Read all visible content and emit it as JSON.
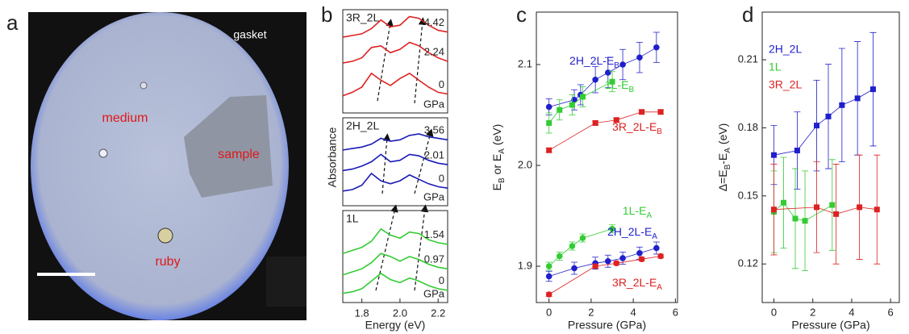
{
  "photo": {
    "panel_label": "a",
    "gasket": "gasket",
    "medium": "medium",
    "sample": "sample",
    "ruby": "ruby"
  },
  "chart_data": [
    {
      "type": "line",
      "panel_label": "b",
      "xlabel": "Energy (eV)",
      "ylabel": "Absorbance",
      "xlim": [
        1.7,
        2.25
      ],
      "xticks": [
        1.8,
        {
          "value": 2,
          "label": "2.0"
        },
        2.2
      ],
      "x": [
        1.7,
        1.75,
        1.8,
        1.85,
        1.9,
        1.95,
        2.0,
        2.05,
        2.1,
        2.15,
        2.2,
        2.25
      ],
      "panels": [
        {
          "label": "3R_2L",
          "unit": "GPa",
          "ylim": [
            0,
            3
          ],
          "color": "#dd2222",
          "series": [
            {
              "name": "4.42",
              "values": [
                2.2,
                2.25,
                2.3,
                2.45,
                2.7,
                2.5,
                2.55,
                2.8,
                2.75,
                2.55,
                2.4,
                2.35
              ]
            },
            {
              "name": "2.24",
              "values": [
                1.45,
                1.5,
                1.6,
                1.9,
                1.95,
                1.75,
                1.85,
                2.05,
                1.95,
                1.75,
                1.6,
                1.5
              ]
            },
            {
              "name": "0",
              "values": [
                0.5,
                0.6,
                0.75,
                1.15,
                0.95,
                0.8,
                1.0,
                1.15,
                0.95,
                0.75,
                0.6,
                0.55
              ]
            }
          ]
        },
        {
          "label": "2H_2L",
          "unit": "GPa",
          "ylim": [
            0,
            3
          ],
          "color": "#1a1ab8",
          "series": [
            {
              "name": "3.56",
              "values": [
                1.9,
                1.95,
                2.0,
                2.1,
                2.3,
                2.2,
                2.25,
                2.4,
                2.45,
                2.35,
                2.3,
                2.25
              ]
            },
            {
              "name": "2.01",
              "values": [
                1.2,
                1.25,
                1.35,
                1.5,
                1.75,
                1.5,
                1.55,
                1.75,
                1.7,
                1.55,
                1.45,
                1.4
              ]
            },
            {
              "name": "0",
              "values": [
                0.5,
                0.55,
                0.7,
                1.1,
                0.85,
                0.75,
                0.85,
                1.05,
                0.9,
                0.75,
                0.65,
                0.6
              ]
            }
          ]
        },
        {
          "label": "1L",
          "unit": "GPa",
          "ylim": [
            0,
            3
          ],
          "color": "#33cc33",
          "series": [
            {
              "name": "1.54",
              "values": [
                1.6,
                1.7,
                1.8,
                2.0,
                2.4,
                2.2,
                2.1,
                2.3,
                2.25,
                2.05,
                1.95,
                1.9
              ]
            },
            {
              "name": "0.97",
              "values": [
                0.9,
                1.0,
                1.1,
                1.3,
                1.6,
                1.5,
                1.35,
                1.5,
                1.4,
                1.25,
                1.15,
                1.1
              ]
            },
            {
              "name": "0",
              "values": [
                0.3,
                0.35,
                0.45,
                0.7,
                0.95,
                0.75,
                0.65,
                0.8,
                0.7,
                0.55,
                0.45,
                0.4
              ]
            }
          ]
        }
      ]
    },
    {
      "type": "scatter",
      "panel_label": "c",
      "xlabel": "Pressure (GPa)",
      "ylabel": "EB or EA (eV)",
      "xlim": [
        -0.6,
        6.1
      ],
      "xticks": [
        0,
        2,
        4,
        6
      ],
      "ylim": [
        1.864,
        2.152
      ],
      "yticks": [
        1.9,
        {
          "value": 2,
          "label": "2.0"
        },
        2.1
      ],
      "series": [
        {
          "name": "2H_2L-EB",
          "color": "#1f1fcc",
          "marker": "circle",
          "x": [
            0,
            1.2,
            1.5,
            2.2,
            2.8,
            3.5,
            4.3,
            5.1
          ],
          "values": [
            2.058,
            2.065,
            2.07,
            2.085,
            2.092,
            2.1,
            2.107,
            2.117
          ],
          "errors": [
            0.008,
            0.01,
            0.01,
            0.013,
            0.015,
            0.015,
            0.015,
            0.015
          ]
        },
        {
          "name": "1L-EB",
          "color": "#33cc33",
          "marker": "square",
          "x": [
            0,
            0.5,
            1.1,
            1.6,
            3.0
          ],
          "values": [
            2.042,
            2.055,
            2.06,
            2.068,
            2.083
          ],
          "errors": [
            0.01,
            0.01,
            0.01,
            0.01,
            0.01
          ]
        },
        {
          "name": "3R_2L-EB",
          "color": "#dd2222",
          "marker": "square",
          "x": [
            0,
            2.2,
            3.2,
            4.4,
            5.3
          ],
          "values": [
            2.015,
            2.042,
            2.045,
            2.053,
            2.053
          ],
          "errors": [
            0.002,
            0.002,
            0.002,
            0.002,
            0.002
          ]
        },
        {
          "name": "1L-EA",
          "color": "#33cc33",
          "marker": "circle",
          "x": [
            0,
            0.5,
            1.1,
            1.6,
            3.0
          ],
          "values": [
            1.9,
            1.91,
            1.92,
            1.928,
            1.937
          ],
          "errors": [
            0.004,
            0.004,
            0.004,
            0.004,
            0.004
          ]
        },
        {
          "name": "2H_2L-EA",
          "color": "#1f1fcc",
          "marker": "circle",
          "x": [
            0,
            1.2,
            2.2,
            2.8,
            3.5,
            4.3,
            5.1
          ],
          "values": [
            1.89,
            1.898,
            1.903,
            1.905,
            1.908,
            1.913,
            1.918
          ],
          "errors": [
            0.005,
            0.006,
            0.006,
            0.006,
            0.006,
            0.006,
            0.006
          ]
        },
        {
          "name": "3R_2L-EA",
          "color": "#dd2222",
          "marker": "circle",
          "x": [
            0,
            2.2,
            3.2,
            4.4,
            5.3
          ],
          "values": [
            1.872,
            1.9,
            1.903,
            1.907,
            1.91
          ],
          "errors": [
            0.002,
            0.002,
            0.002,
            0.002,
            0.002
          ]
        }
      ]
    },
    {
      "type": "scatter",
      "panel_label": "d",
      "xlabel": "Pressure (GPa)",
      "ylabel": "Δ=EB-EA (eV)",
      "xlim": [
        -0.6,
        6.45
      ],
      "xticks": [
        0,
        2,
        4,
        6
      ],
      "ylim": [
        0.103,
        0.231
      ],
      "yticks": [
        0.12,
        0.15,
        0.18,
        0.21
      ],
      "series": [
        {
          "name": "2H_2L",
          "color": "#1f1fcc",
          "marker": "square",
          "x": [
            0,
            1.2,
            2.2,
            2.8,
            3.5,
            4.3,
            5.1
          ],
          "values": [
            0.168,
            0.17,
            0.181,
            0.185,
            0.19,
            0.193,
            0.197
          ],
          "errors": [
            0.013,
            0.017,
            0.02,
            0.023,
            0.025,
            0.025,
            0.025
          ]
        },
        {
          "name": "1L",
          "color": "#33cc33",
          "marker": "square",
          "x": [
            0,
            0.5,
            1.1,
            1.6,
            3.0
          ],
          "values": [
            0.143,
            0.147,
            0.14,
            0.139,
            0.146
          ],
          "errors": [
            0.018,
            0.02,
            0.022,
            0.022,
            0.02
          ]
        },
        {
          "name": "3R_2L",
          "color": "#dd2222",
          "marker": "square",
          "x": [
            0,
            2.2,
            3.2,
            4.4,
            5.3
          ],
          "values": [
            0.144,
            0.145,
            0.142,
            0.145,
            0.144
          ],
          "errors": [
            0.02,
            0.02,
            0.022,
            0.023,
            0.024
          ]
        }
      ]
    }
  ]
}
